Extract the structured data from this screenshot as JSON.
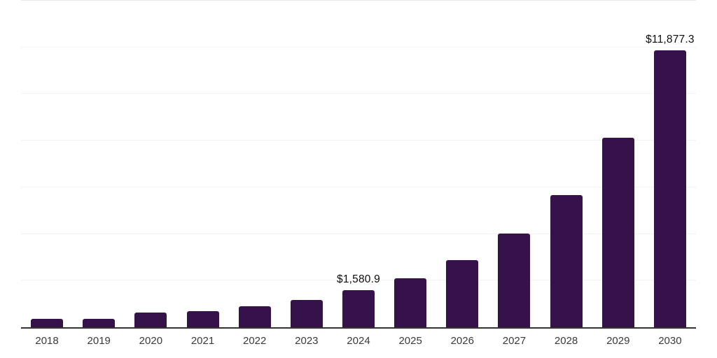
{
  "chart_data": {
    "type": "bar",
    "title": "",
    "categories": [
      "2018",
      "2019",
      "2020",
      "2021",
      "2022",
      "2023",
      "2024",
      "2025",
      "2026",
      "2027",
      "2028",
      "2029",
      "2030"
    ],
    "values": [
      350,
      370,
      635,
      695,
      890,
      1155,
      1580.9,
      2110,
      2875,
      4005,
      5660,
      8135,
      11877.3
    ],
    "bar_labels": [
      "",
      "",
      "",
      "",
      "",
      "",
      "$1,580.9",
      "",
      "",
      "",
      "",
      "",
      "$11,877.3"
    ],
    "xlabel": "",
    "ylabel": "",
    "ylim": [
      0,
      14000
    ],
    "gridline_step": 2000,
    "grid": "horizontal",
    "legend_position": "none",
    "y_axis_tick_labels": "hidden",
    "colors": {
      "bar": "#351249",
      "axis_line": "#333333",
      "gridline": "#f3f3f3",
      "top_border": "#e8e8e8",
      "tick_label": "#3a3a3a",
      "data_label": "#0d0d0d",
      "background": "#ffffff"
    }
  }
}
